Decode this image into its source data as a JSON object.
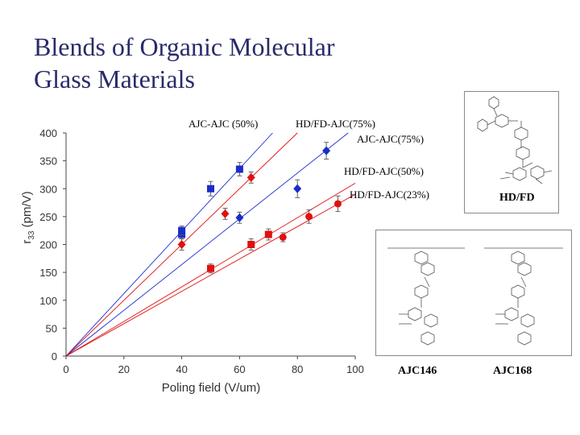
{
  "title": {
    "line1": "Blends of Organic Molecular",
    "line2": "Glass Materials"
  },
  "chart_data": {
    "type": "scatter",
    "xlabel": "Poling field (V/um)",
    "ylabel": "r33 (pm/V)",
    "ylabel_main": "r",
    "ylabel_sub": "33",
    "ylabel_rest": " (pm/V)",
    "xlim": [
      0,
      100
    ],
    "ylim": [
      0,
      400
    ],
    "xticks": [
      0,
      20,
      40,
      60,
      80,
      100
    ],
    "yticks": [
      0,
      50,
      100,
      150,
      200,
      250,
      300,
      350,
      400
    ],
    "grid": false,
    "series": [
      {
        "name": "AJC-AJC (50%)",
        "marker": "square",
        "color": "#1a2ccc",
        "points": [
          {
            "x": 40,
            "y": 218,
            "err": 8
          },
          {
            "x": 40,
            "y": 225,
            "err": 8
          },
          {
            "x": 50,
            "y": 300,
            "err": 13
          },
          {
            "x": 60,
            "y": 335,
            "err": 12
          }
        ],
        "fit_slope": 5.6
      },
      {
        "name": "AJC-AJC(75%)",
        "marker": "diamond",
        "color": "#1a2ccc",
        "points": [
          {
            "x": 60,
            "y": 248,
            "err": 10
          },
          {
            "x": 80,
            "y": 300,
            "err": 16
          },
          {
            "x": 90,
            "y": 368,
            "err": 15
          }
        ],
        "fit_slope": 4.1
      },
      {
        "name": "HD/FD-AJC(75%)",
        "marker": "diamond",
        "color": "#e01010",
        "points": [
          {
            "x": 40,
            "y": 200,
            "err": 10
          },
          {
            "x": 55,
            "y": 255,
            "err": 10
          },
          {
            "x": 64,
            "y": 320,
            "err": 10
          }
        ],
        "fit_slope": 5.0
      },
      {
        "name": "HD/FD-AJC(50%)",
        "marker": "square",
        "color": "#e01010",
        "points": [
          {
            "x": 50,
            "y": 157,
            "err": 8
          },
          {
            "x": 64,
            "y": 200,
            "err": 10
          },
          {
            "x": 70,
            "y": 218,
            "err": 10
          }
        ],
        "fit_slope": 3.1
      },
      {
        "name": "HD/FD-AJC(23%)",
        "marker": "circle",
        "color": "#e01010",
        "points": [
          {
            "x": 75,
            "y": 213,
            "err": 8
          },
          {
            "x": 84,
            "y": 250,
            "err": 12
          },
          {
            "x": 94,
            "y": 273,
            "err": 14
          }
        ],
        "fit_slope": 2.9
      }
    ],
    "fit_lines": [
      {
        "color": "#1a2ccc",
        "slope": 5.6
      },
      {
        "color": "#e01010",
        "slope": 5.0
      },
      {
        "color": "#1a2ccc",
        "slope": 4.1
      },
      {
        "color": "#e01010",
        "slope": 3.1
      },
      {
        "color": "#e01010",
        "slope": 2.9
      }
    ],
    "annotations": [
      "AJC-AJC (50%)",
      "HD/FD-AJC(75%)",
      "AJC-AJC(75%)",
      "HD/FD-AJC(50%)",
      "HD/FD-AJC(23%)"
    ]
  },
  "structures": {
    "hdfd_label": "HD/FD",
    "ajc146_label": "AJC146",
    "ajc168_label": "AJC168"
  }
}
